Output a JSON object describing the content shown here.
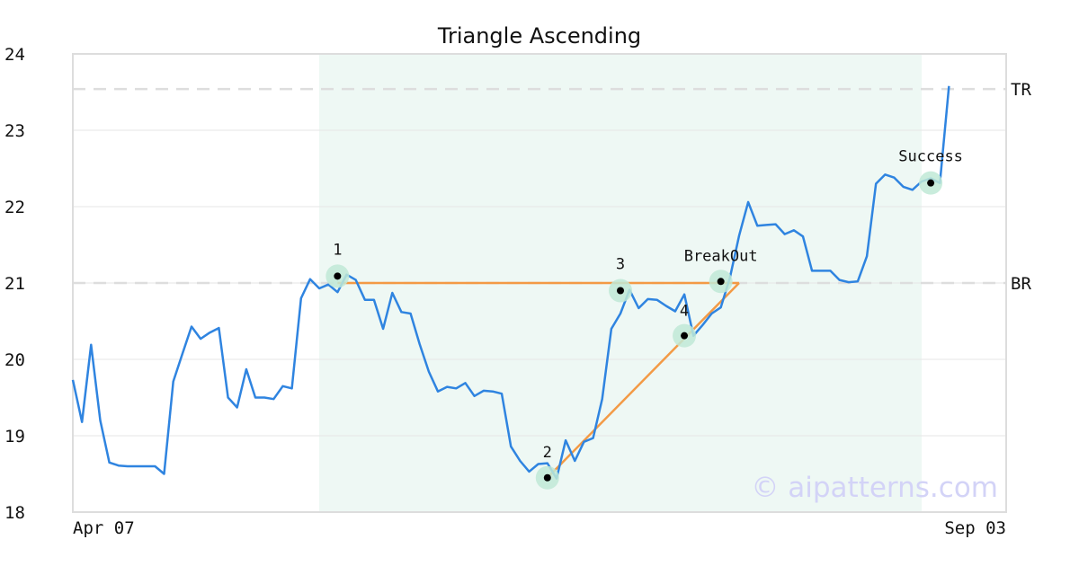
{
  "chart_data": {
    "type": "line",
    "title": "Triangle Ascending",
    "watermark": "© aipatterns.com",
    "xlabel": "",
    "ylabel": "",
    "x_tick_labels": [
      {
        "index": 0,
        "label": "Apr 07"
      },
      {
        "index": 102,
        "label": "Sep 03"
      }
    ],
    "ylim": [
      18,
      24
    ],
    "yticks": [
      18,
      19,
      20,
      21,
      22,
      23,
      24
    ],
    "grid": "horizontal",
    "pattern_window": {
      "start_index": 27,
      "end_index": 93
    },
    "series": [
      {
        "values": [
          19.73,
          19.18,
          20.19,
          19.2,
          18.65,
          18.61,
          18.6,
          18.6,
          18.6,
          18.6,
          18.5,
          19.71,
          20.07,
          20.43,
          20.27,
          20.35,
          20.41,
          19.5,
          19.37,
          19.87,
          19.5,
          19.5,
          19.48,
          19.65,
          19.62,
          20.8,
          21.05,
          20.93,
          20.98,
          20.88,
          21.11,
          21.04,
          20.78,
          20.78,
          20.4,
          20.87,
          20.62,
          20.6,
          20.2,
          19.84,
          19.58,
          19.64,
          19.62,
          19.69,
          19.52,
          19.59,
          19.58,
          19.55,
          18.86,
          18.67,
          18.53,
          18.63,
          18.64,
          18.44,
          18.94,
          18.67,
          18.92,
          18.97,
          19.48,
          20.4,
          20.6,
          20.91,
          20.67,
          20.79,
          20.78,
          20.7,
          20.63,
          20.85,
          20.31,
          20.45,
          20.6,
          20.68,
          21.07,
          21.62,
          22.06,
          21.75,
          21.76,
          21.77,
          21.64,
          21.69,
          21.61,
          21.16,
          21.16,
          21.16,
          21.04,
          21.01,
          21.02,
          21.35,
          22.3,
          22.42,
          22.38,
          22.26,
          22.22,
          22.33,
          22.37,
          22.31,
          23.58
        ]
      }
    ],
    "levels": [
      {
        "label": "TR",
        "value": 23.54
      },
      {
        "label": "BR",
        "value": 21.0
      }
    ],
    "trendlines": [
      {
        "from": {
          "index": 29,
          "value": 21.0
        },
        "to": {
          "index": 73,
          "value": 21.0
        }
      },
      {
        "from": {
          "index": 52,
          "value": 18.45
        },
        "to": {
          "index": 73,
          "value": 21.0
        }
      }
    ],
    "points": [
      {
        "label": "1",
        "index": 29,
        "value": 21.09
      },
      {
        "label": "2",
        "index": 52,
        "value": 18.45
      },
      {
        "label": "3",
        "index": 60,
        "value": 20.9
      },
      {
        "label": "4",
        "index": 67,
        "value": 20.31
      },
      {
        "label": "BreakOut",
        "index": 71,
        "value": 21.02
      },
      {
        "label": "Success",
        "index": 94,
        "value": 22.31
      }
    ],
    "colors": {
      "line": "#2f84e0",
      "trendline": "#f39a45",
      "shade": "#eef8f4",
      "marker_halo": "#bfe9d6",
      "marker_dot": "#000000",
      "level_line": "#dddddd",
      "grid": "#e6e6e6",
      "frame": "#dddddd",
      "watermark": "#d3d3f7"
    }
  }
}
